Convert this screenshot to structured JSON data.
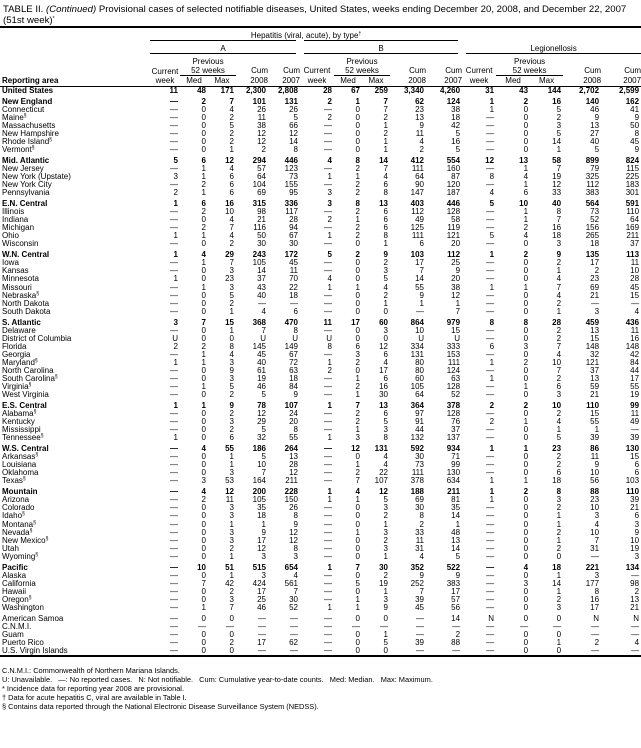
{
  "title": {
    "prefix": "TABLE II. ",
    "continued": "(Continued)",
    "text": " Provisional cases of selected notifiable diseases, United States, weeks ending December 20, 2008, and December 22, 2007",
    "line2": "(51st week)",
    "line2_sup": "*"
  },
  "header": {
    "hepatitis": "Hepatitis (viral, acute), by type",
    "hepatitis_sup": "†",
    "group_a": "A",
    "group_b": "B",
    "group_legionellosis": "Legionellosis",
    "previous": "Previous",
    "weeks52": "52 weeks",
    "current": "Current",
    "week": "week",
    "med": "Med",
    "max": "Max",
    "cum": "Cum",
    "y2008": "2008",
    "y2007": "2007",
    "reporting_area": "Reporting area"
  },
  "rows": [
    {
      "area": "United States",
      "bold": true,
      "v": [
        "11",
        "48",
        "171",
        "2,300",
        "2,808",
        "28",
        "67",
        "259",
        "3,340",
        "4,260",
        "31",
        "43",
        "144",
        "2,702",
        "2,599"
      ]
    },
    {
      "area": "New England",
      "bold": true,
      "gap": true,
      "v": [
        "—",
        "2",
        "7",
        "101",
        "131",
        "2",
        "1",
        "7",
        "62",
        "124",
        "1",
        "2",
        "16",
        "140",
        "162"
      ]
    },
    {
      "area": "Connecticut",
      "v": [
        "—",
        "0",
        "4",
        "26",
        "26",
        "—",
        "0",
        "7",
        "23",
        "38",
        "1",
        "0",
        "5",
        "46",
        "41"
      ]
    },
    {
      "area": "Maine",
      "sup": "§",
      "v": [
        "—",
        "0",
        "2",
        "11",
        "5",
        "2",
        "0",
        "2",
        "13",
        "18",
        "—",
        "0",
        "2",
        "9",
        "9"
      ]
    },
    {
      "area": "Massachusetts",
      "v": [
        "—",
        "0",
        "5",
        "38",
        "66",
        "—",
        "0",
        "1",
        "9",
        "42",
        "—",
        "0",
        "3",
        "13",
        "50"
      ]
    },
    {
      "area": "New Hampshire",
      "v": [
        "—",
        "0",
        "2",
        "12",
        "12",
        "—",
        "0",
        "2",
        "11",
        "5",
        "—",
        "0",
        "5",
        "27",
        "8"
      ]
    },
    {
      "area": "Rhode Island",
      "sup": "§",
      "v": [
        "—",
        "0",
        "2",
        "12",
        "14",
        "—",
        "0",
        "1",
        "4",
        "16",
        "—",
        "0",
        "14",
        "40",
        "45"
      ]
    },
    {
      "area": "Vermont",
      "sup": "§",
      "v": [
        "—",
        "0",
        "1",
        "2",
        "8",
        "—",
        "0",
        "1",
        "2",
        "5",
        "—",
        "0",
        "1",
        "5",
        "9"
      ]
    },
    {
      "area": "Mid. Atlantic",
      "bold": true,
      "gap": true,
      "v": [
        "5",
        "6",
        "12",
        "294",
        "446",
        "4",
        "8",
        "14",
        "412",
        "554",
        "12",
        "13",
        "58",
        "899",
        "824"
      ]
    },
    {
      "area": "New Jersey",
      "v": [
        "—",
        "1",
        "4",
        "57",
        "123",
        "—",
        "2",
        "7",
        "111",
        "160",
        "—",
        "1",
        "7",
        "79",
        "115"
      ]
    },
    {
      "area": "New York (Upstate)",
      "v": [
        "3",
        "1",
        "6",
        "64",
        "73",
        "1",
        "1",
        "4",
        "64",
        "87",
        "8",
        "4",
        "19",
        "325",
        "225"
      ]
    },
    {
      "area": "New York City",
      "v": [
        "—",
        "2",
        "6",
        "104",
        "155",
        "—",
        "2",
        "6",
        "90",
        "120",
        "—",
        "1",
        "12",
        "112",
        "183"
      ]
    },
    {
      "area": "Pennsylvania",
      "v": [
        "2",
        "1",
        "6",
        "69",
        "95",
        "3",
        "2",
        "8",
        "147",
        "187",
        "4",
        "6",
        "33",
        "383",
        "301"
      ]
    },
    {
      "area": "E.N. Central",
      "bold": true,
      "gap": true,
      "v": [
        "1",
        "6",
        "16",
        "315",
        "336",
        "3",
        "8",
        "13",
        "403",
        "446",
        "5",
        "10",
        "40",
        "564",
        "591"
      ]
    },
    {
      "area": "Illinois",
      "v": [
        "—",
        "2",
        "10",
        "98",
        "117",
        "—",
        "2",
        "6",
        "112",
        "128",
        "—",
        "1",
        "8",
        "73",
        "110"
      ]
    },
    {
      "area": "Indiana",
      "v": [
        "—",
        "0",
        "4",
        "21",
        "28",
        "2",
        "1",
        "6",
        "49",
        "58",
        "—",
        "1",
        "7",
        "52",
        "64"
      ]
    },
    {
      "area": "Michigan",
      "v": [
        "—",
        "2",
        "7",
        "116",
        "94",
        "—",
        "2",
        "6",
        "125",
        "119",
        "—",
        "2",
        "16",
        "156",
        "169"
      ]
    },
    {
      "area": "Ohio",
      "v": [
        "1",
        "1",
        "4",
        "50",
        "67",
        "1",
        "2",
        "8",
        "111",
        "121",
        "5",
        "4",
        "18",
        "265",
        "211"
      ]
    },
    {
      "area": "Wisconsin",
      "v": [
        "—",
        "0",
        "2",
        "30",
        "30",
        "—",
        "0",
        "1",
        "6",
        "20",
        "—",
        "0",
        "3",
        "18",
        "37"
      ]
    },
    {
      "area": "W.N. Central",
      "bold": true,
      "gap": true,
      "v": [
        "1",
        "4",
        "29",
        "243",
        "172",
        "5",
        "2",
        "9",
        "103",
        "112",
        "1",
        "2",
        "9",
        "135",
        "113"
      ]
    },
    {
      "area": "Iowa",
      "v": [
        "—",
        "1",
        "7",
        "105",
        "45",
        "—",
        "0",
        "2",
        "17",
        "25",
        "—",
        "0",
        "2",
        "17",
        "11"
      ]
    },
    {
      "area": "Kansas",
      "v": [
        "—",
        "0",
        "3",
        "14",
        "11",
        "—",
        "0",
        "3",
        "7",
        "9",
        "—",
        "0",
        "1",
        "2",
        "10"
      ]
    },
    {
      "area": "Minnesota",
      "v": [
        "1",
        "0",
        "23",
        "37",
        "70",
        "4",
        "0",
        "5",
        "14",
        "20",
        "—",
        "0",
        "4",
        "23",
        "28"
      ]
    },
    {
      "area": "Missouri",
      "v": [
        "—",
        "1",
        "3",
        "43",
        "22",
        "1",
        "1",
        "4",
        "55",
        "38",
        "1",
        "1",
        "7",
        "69",
        "45"
      ]
    },
    {
      "area": "Nebraska",
      "sup": "§",
      "v": [
        "—",
        "0",
        "5",
        "40",
        "18",
        "—",
        "0",
        "2",
        "9",
        "12",
        "—",
        "0",
        "4",
        "21",
        "15"
      ]
    },
    {
      "area": "North Dakota",
      "v": [
        "—",
        "0",
        "2",
        "—",
        "—",
        "—",
        "0",
        "1",
        "1",
        "1",
        "—",
        "0",
        "2",
        "—",
        "—"
      ]
    },
    {
      "area": "South Dakota",
      "v": [
        "—",
        "0",
        "1",
        "4",
        "6",
        "—",
        "0",
        "0",
        "—",
        "7",
        "—",
        "0",
        "1",
        "3",
        "4"
      ]
    },
    {
      "area": "S. Atlantic",
      "bold": true,
      "gap": true,
      "v": [
        "3",
        "7",
        "15",
        "368",
        "470",
        "11",
        "17",
        "60",
        "864",
        "979",
        "8",
        "8",
        "28",
        "459",
        "436"
      ]
    },
    {
      "area": "Delaware",
      "v": [
        "—",
        "0",
        "1",
        "7",
        "8",
        "—",
        "0",
        "3",
        "10",
        "15",
        "—",
        "0",
        "2",
        "13",
        "11"
      ]
    },
    {
      "area": "District of Columbia",
      "v": [
        "U",
        "0",
        "0",
        "U",
        "U",
        "U",
        "0",
        "0",
        "U",
        "U",
        "—",
        "0",
        "2",
        "15",
        "16"
      ]
    },
    {
      "area": "Florida",
      "v": [
        "2",
        "2",
        "8",
        "145",
        "149",
        "8",
        "6",
        "12",
        "334",
        "333",
        "6",
        "3",
        "7",
        "148",
        "148"
      ]
    },
    {
      "area": "Georgia",
      "v": [
        "—",
        "1",
        "4",
        "45",
        "67",
        "—",
        "3",
        "6",
        "131",
        "153",
        "—",
        "0",
        "4",
        "32",
        "42"
      ]
    },
    {
      "area": "Maryland",
      "sup": "§",
      "v": [
        "1",
        "1",
        "3",
        "40",
        "72",
        "1",
        "2",
        "4",
        "80",
        "111",
        "1",
        "2",
        "10",
        "121",
        "84"
      ]
    },
    {
      "area": "North Carolina",
      "v": [
        "—",
        "0",
        "9",
        "61",
        "63",
        "2",
        "0",
        "17",
        "80",
        "124",
        "—",
        "0",
        "7",
        "37",
        "44"
      ]
    },
    {
      "area": "South Carolina",
      "sup": "§",
      "v": [
        "—",
        "0",
        "3",
        "19",
        "18",
        "—",
        "1",
        "6",
        "60",
        "63",
        "1",
        "0",
        "2",
        "13",
        "17"
      ]
    },
    {
      "area": "Virginia",
      "sup": "§",
      "v": [
        "—",
        "1",
        "5",
        "46",
        "84",
        "—",
        "2",
        "16",
        "105",
        "128",
        "—",
        "1",
        "6",
        "59",
        "55"
      ]
    },
    {
      "area": "West Virginia",
      "v": [
        "—",
        "0",
        "2",
        "5",
        "9",
        "—",
        "1",
        "30",
        "64",
        "52",
        "—",
        "0",
        "3",
        "21",
        "19"
      ]
    },
    {
      "area": "E.S. Central",
      "bold": true,
      "gap": true,
      "v": [
        "1",
        "1",
        "9",
        "78",
        "107",
        "1",
        "7",
        "13",
        "364",
        "378",
        "2",
        "2",
        "10",
        "110",
        "99"
      ]
    },
    {
      "area": "Alabama",
      "sup": "§",
      "v": [
        "—",
        "0",
        "2",
        "12",
        "24",
        "—",
        "2",
        "6",
        "97",
        "128",
        "—",
        "0",
        "2",
        "15",
        "11"
      ]
    },
    {
      "area": "Kentucky",
      "v": [
        "—",
        "0",
        "3",
        "29",
        "20",
        "—",
        "2",
        "5",
        "91",
        "76",
        "2",
        "1",
        "4",
        "55",
        "49"
      ]
    },
    {
      "area": "Mississippi",
      "v": [
        "—",
        "0",
        "2",
        "5",
        "8",
        "—",
        "1",
        "3",
        "44",
        "37",
        "—",
        "0",
        "1",
        "1",
        "—"
      ]
    },
    {
      "area": "Tennessee",
      "sup": "§",
      "v": [
        "1",
        "0",
        "6",
        "32",
        "55",
        "1",
        "3",
        "8",
        "132",
        "137",
        "—",
        "0",
        "5",
        "39",
        "39"
      ]
    },
    {
      "area": "W.S. Central",
      "bold": true,
      "gap": true,
      "v": [
        "—",
        "4",
        "55",
        "186",
        "264",
        "—",
        "12",
        "131",
        "592",
        "934",
        "1",
        "1",
        "23",
        "86",
        "130"
      ]
    },
    {
      "area": "Arkansas",
      "sup": "§",
      "v": [
        "—",
        "0",
        "1",
        "5",
        "13",
        "—",
        "0",
        "4",
        "30",
        "71",
        "—",
        "0",
        "2",
        "11",
        "15"
      ]
    },
    {
      "area": "Louisiana",
      "v": [
        "—",
        "0",
        "1",
        "10",
        "28",
        "—",
        "1",
        "4",
        "73",
        "99",
        "—",
        "0",
        "2",
        "9",
        "6"
      ]
    },
    {
      "area": "Oklahoma",
      "v": [
        "—",
        "0",
        "3",
        "7",
        "12",
        "—",
        "2",
        "22",
        "111",
        "130",
        "—",
        "0",
        "6",
        "10",
        "6"
      ]
    },
    {
      "area": "Texas",
      "sup": "§",
      "v": [
        "—",
        "3",
        "53",
        "164",
        "211",
        "—",
        "7",
        "107",
        "378",
        "634",
        "1",
        "1",
        "18",
        "56",
        "103"
      ]
    },
    {
      "area": "Mountain",
      "bold": true,
      "gap": true,
      "v": [
        "—",
        "4",
        "12",
        "200",
        "228",
        "1",
        "4",
        "12",
        "188",
        "211",
        "1",
        "2",
        "8",
        "88",
        "110"
      ]
    },
    {
      "area": "Arizona",
      "v": [
        "—",
        "2",
        "11",
        "105",
        "150",
        "1",
        "1",
        "5",
        "69",
        "81",
        "1",
        "0",
        "3",
        "23",
        "39"
      ]
    },
    {
      "area": "Colorado",
      "v": [
        "—",
        "0",
        "3",
        "35",
        "26",
        "—",
        "0",
        "3",
        "30",
        "35",
        "—",
        "0",
        "2",
        "10",
        "21"
      ]
    },
    {
      "area": "Idaho",
      "sup": "§",
      "v": [
        "—",
        "0",
        "3",
        "18",
        "8",
        "—",
        "0",
        "2",
        "8",
        "14",
        "—",
        "0",
        "1",
        "3",
        "6"
      ]
    },
    {
      "area": "Montana",
      "sup": "§",
      "v": [
        "—",
        "0",
        "1",
        "1",
        "9",
        "—",
        "0",
        "1",
        "2",
        "1",
        "—",
        "0",
        "1",
        "4",
        "3"
      ]
    },
    {
      "area": "Nevada",
      "sup": "§",
      "v": [
        "—",
        "0",
        "3",
        "9",
        "12",
        "—",
        "1",
        "3",
        "33",
        "48",
        "—",
        "0",
        "2",
        "10",
        "9"
      ]
    },
    {
      "area": "New Mexico",
      "sup": "§",
      "v": [
        "—",
        "0",
        "3",
        "17",
        "12",
        "—",
        "0",
        "2",
        "11",
        "13",
        "—",
        "0",
        "1",
        "7",
        "10"
      ]
    },
    {
      "area": "Utah",
      "v": [
        "—",
        "0",
        "2",
        "12",
        "8",
        "—",
        "0",
        "3",
        "31",
        "14",
        "—",
        "0",
        "2",
        "31",
        "19"
      ]
    },
    {
      "area": "Wyoming",
      "sup": "§",
      "v": [
        "—",
        "0",
        "1",
        "3",
        "3",
        "—",
        "0",
        "1",
        "4",
        "5",
        "—",
        "0",
        "0",
        "—",
        "3"
      ]
    },
    {
      "area": "Pacific",
      "bold": true,
      "gap": true,
      "v": [
        "—",
        "10",
        "51",
        "515",
        "654",
        "1",
        "7",
        "30",
        "352",
        "522",
        "—",
        "4",
        "18",
        "221",
        "134"
      ]
    },
    {
      "area": "Alaska",
      "v": [
        "—",
        "0",
        "1",
        "3",
        "4",
        "—",
        "0",
        "2",
        "9",
        "9",
        "—",
        "0",
        "1",
        "3",
        "—"
      ]
    },
    {
      "area": "California",
      "v": [
        "—",
        "7",
        "42",
        "424",
        "561",
        "—",
        "5",
        "19",
        "252",
        "383",
        "—",
        "3",
        "14",
        "177",
        "98"
      ]
    },
    {
      "area": "Hawaii",
      "v": [
        "—",
        "0",
        "2",
        "17",
        "7",
        "—",
        "0",
        "1",
        "7",
        "17",
        "—",
        "0",
        "1",
        "8",
        "2"
      ]
    },
    {
      "area": "Oregon",
      "sup": "§",
      "v": [
        "—",
        "0",
        "3",
        "25",
        "30",
        "—",
        "1",
        "3",
        "39",
        "57",
        "—",
        "0",
        "2",
        "16",
        "13"
      ]
    },
    {
      "area": "Washington",
      "v": [
        "—",
        "1",
        "7",
        "46",
        "52",
        "1",
        "1",
        "9",
        "45",
        "56",
        "—",
        "0",
        "3",
        "17",
        "21"
      ]
    },
    {
      "area": "American Samoa",
      "gap": true,
      "v": [
        "—",
        "0",
        "0",
        "—",
        "—",
        "—",
        "0",
        "0",
        "—",
        "14",
        "N",
        "0",
        "0",
        "N",
        "N"
      ]
    },
    {
      "area": "C.N.M.I.",
      "v": [
        "—",
        "—",
        "—",
        "—",
        "—",
        "—",
        "—",
        "—",
        "—",
        "—",
        "—",
        "—",
        "—",
        "—",
        "—"
      ]
    },
    {
      "area": "Guam",
      "v": [
        "—",
        "0",
        "0",
        "—",
        "—",
        "—",
        "0",
        "1",
        "—",
        "2",
        "—",
        "0",
        "0",
        "—",
        "—"
      ]
    },
    {
      "area": "Puerto Rico",
      "v": [
        "—",
        "0",
        "2",
        "17",
        "62",
        "—",
        "0",
        "5",
        "39",
        "88",
        "—",
        "0",
        "1",
        "2",
        "4"
      ]
    },
    {
      "area": "U.S. Virgin Islands",
      "v": [
        "—",
        "0",
        "0",
        "—",
        "—",
        "—",
        "0",
        "0",
        "—",
        "—",
        "—",
        "0",
        "0",
        "—",
        "—"
      ]
    }
  ],
  "notes": [
    "C.N.M.I.: Commonwealth of Northern Mariana Islands.",
    "U: Unavailable.   —: No reported cases.   N: Not notifiable.   Cum: Cumulative year-to-date counts.   Med: Median.   Max: Maximum.",
    "* Incidence data for reporting year 2008 are provisional.",
    "† Data for acute hepatitis C, viral are available in Table I.",
    "§ Contains data reported through the National Electronic Disease Surveillance System (NEDSS)."
  ]
}
